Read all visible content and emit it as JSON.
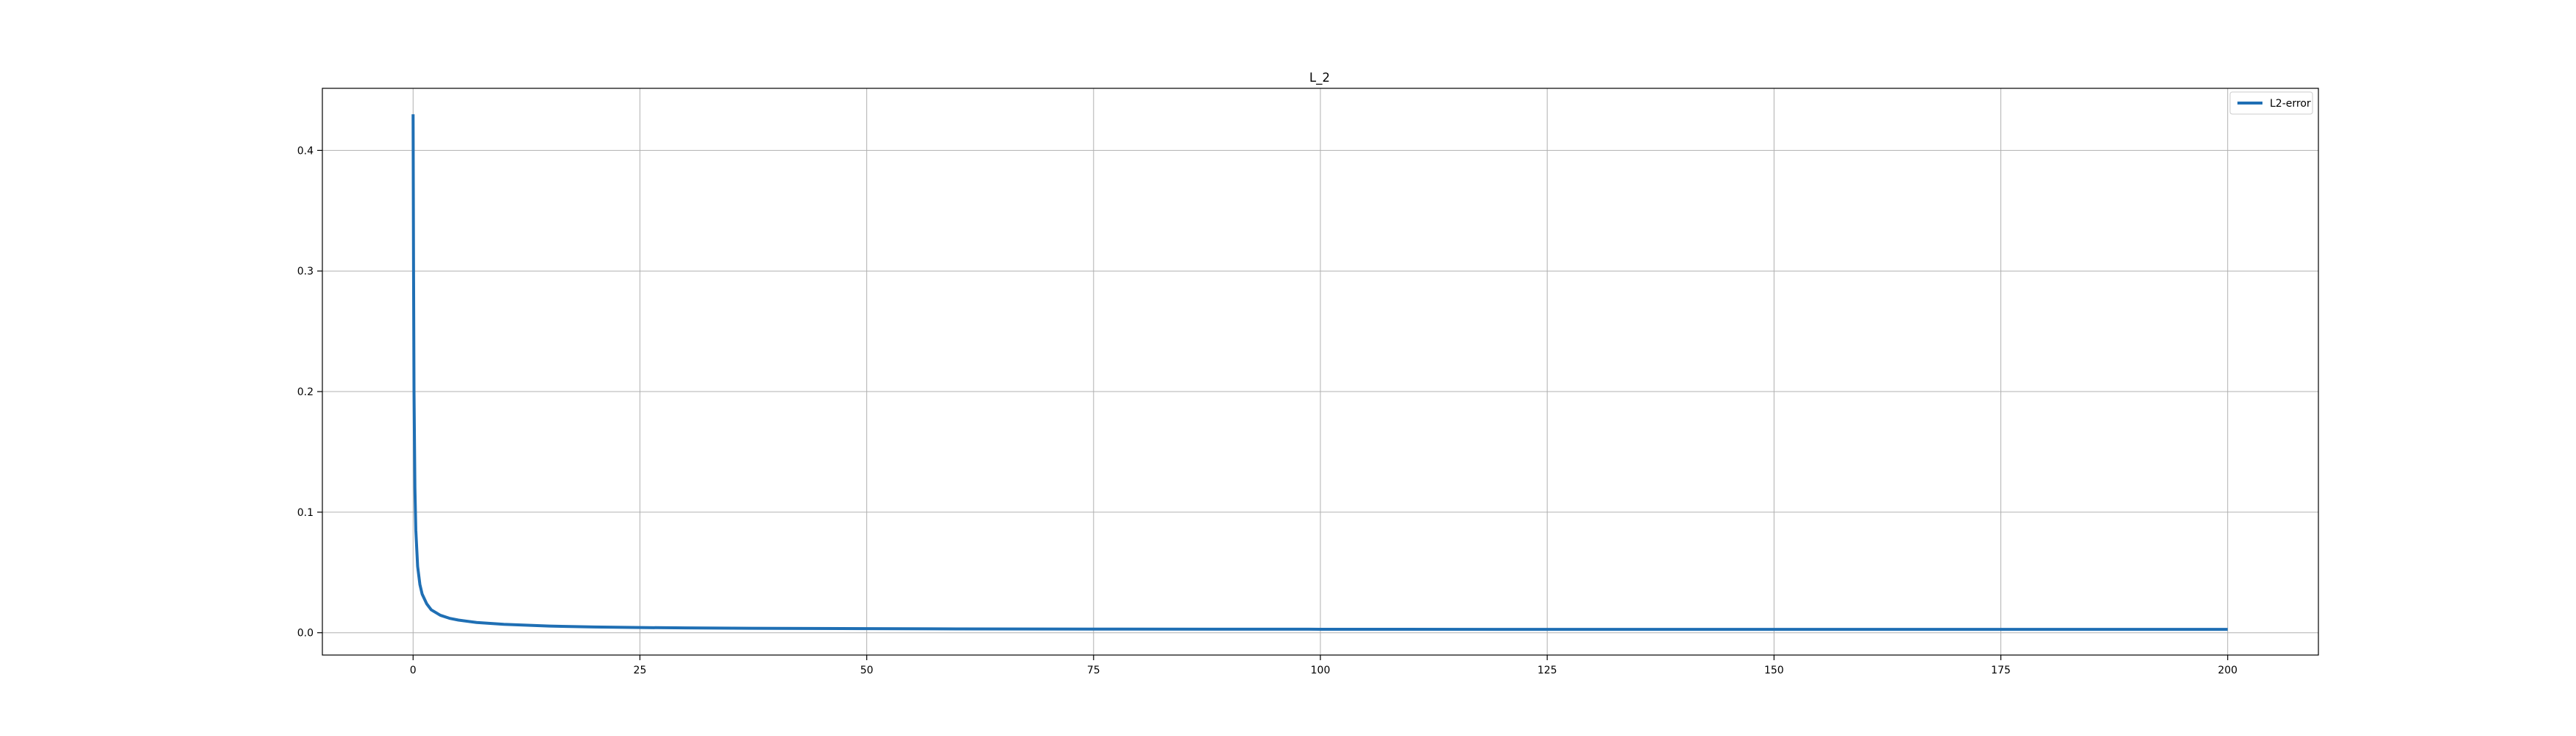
{
  "chart_data": {
    "type": "line",
    "title": "L_2",
    "xlabel": "",
    "ylabel": "",
    "xlim": [
      -10,
      210
    ],
    "ylim": [
      -0.0185,
      0.4515
    ],
    "grid": true,
    "legend_position": "top-right",
    "x_ticks": [
      0,
      25,
      50,
      75,
      100,
      125,
      150,
      175,
      200
    ],
    "y_ticks": [
      0.0,
      0.1,
      0.2,
      0.3,
      0.4
    ],
    "x_tick_labels": [
      "0",
      "25",
      "50",
      "75",
      "100",
      "125",
      "150",
      "175",
      "200"
    ],
    "y_tick_labels": [
      "0.0",
      "0.1",
      "0.2",
      "0.3",
      "0.4"
    ],
    "series": [
      {
        "name": "L2-error",
        "color": "#1f6fb4",
        "x": [
          0,
          0.05,
          0.1,
          0.2,
          0.3,
          0.5,
          0.75,
          1,
          1.5,
          2,
          3,
          4,
          5,
          7,
          10,
          15,
          20,
          25,
          30,
          40,
          50,
          60,
          75,
          100,
          125,
          150,
          175,
          200
        ],
        "y": [
          0.43,
          0.3,
          0.2,
          0.12,
          0.085,
          0.055,
          0.04,
          0.032,
          0.024,
          0.019,
          0.0145,
          0.012,
          0.0105,
          0.0085,
          0.007,
          0.0055,
          0.0048,
          0.0043,
          0.004,
          0.0036,
          0.0034,
          0.0032,
          0.003,
          0.0029,
          0.0028,
          0.0028,
          0.0028,
          0.0028
        ]
      }
    ]
  }
}
